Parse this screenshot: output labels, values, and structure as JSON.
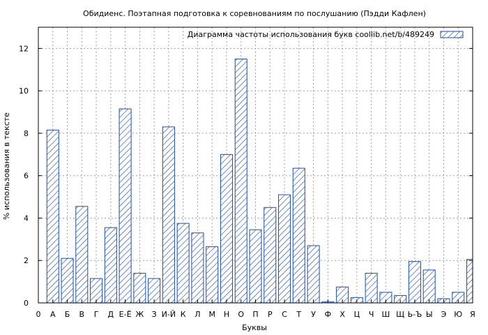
{
  "chart_data": {
    "type": "bar",
    "title": "Обидиенс. Поэтапная подготовка к соревнованиям по послушанию (Пэдди Кафлен)",
    "xlabel": "Буквы",
    "ylabel": "% использования в тексте",
    "legend": {
      "label": "Диаграмма частоты использования букв  coollib.net/b/489249",
      "position": "top-right"
    },
    "ylim": [
      0,
      13
    ],
    "yticks": [
      0,
      2,
      4,
      6,
      8,
      10,
      12
    ],
    "grid": true,
    "categories": [
      "0",
      "А",
      "Б",
      "В",
      "Г",
      "Д",
      "Е-Ё",
      "Ж",
      "З",
      "И-Й",
      "К",
      "Л",
      "М",
      "Н",
      "О",
      "П",
      "Р",
      "С",
      "Т",
      "У",
      "Ф",
      "Х",
      "Ц",
      "Ч",
      "Ш",
      "Щ",
      "Ь-Ъ",
      "Ы",
      "Э",
      "Ю",
      "Я"
    ],
    "values": [
      0,
      8.15,
      2.1,
      4.55,
      1.15,
      3.55,
      9.15,
      1.4,
      1.15,
      8.3,
      3.75,
      3.3,
      2.65,
      7.0,
      11.5,
      3.45,
      4.5,
      5.1,
      6.35,
      2.7,
      0.05,
      0.75,
      0.25,
      1.4,
      0.5,
      0.35,
      1.95,
      1.55,
      0.2,
      0.5,
      2.05
    ]
  }
}
